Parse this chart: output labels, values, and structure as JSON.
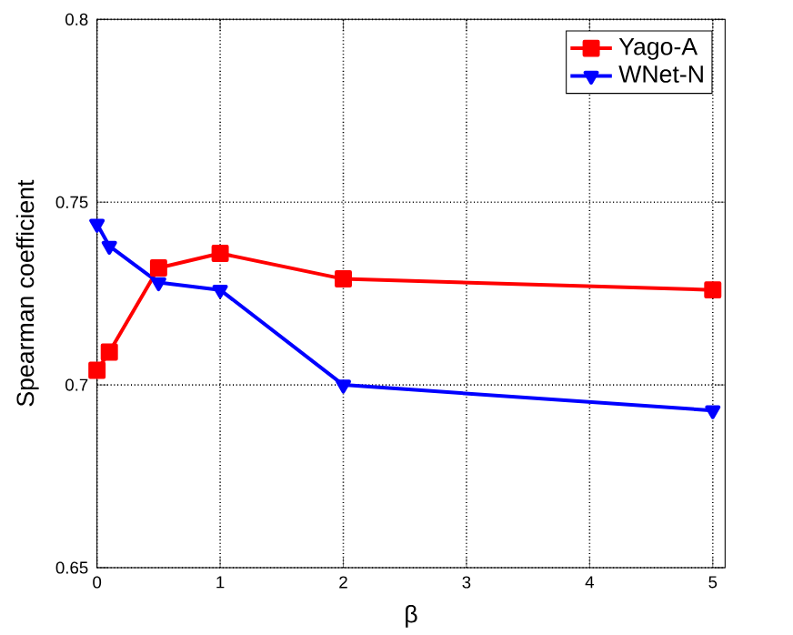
{
  "chart_data": {
    "type": "line",
    "xlabel": "β",
    "ylabel": "Spearman coefficient",
    "xlim": [
      0,
      5.1
    ],
    "ylim": [
      0.65,
      0.8
    ],
    "xticks": [
      0,
      1,
      2,
      3,
      4,
      5
    ],
    "yticks": [
      0.65,
      {
        "value": 0.7,
        "label": "0.7"
      },
      0.75,
      {
        "value": 0.8,
        "label": "0.8"
      }
    ],
    "grid": true,
    "legend": "top right",
    "series": [
      {
        "name": "Yago-A",
        "color": "#ff0000",
        "marker": "square",
        "x": [
          0,
          0.1,
          0.5,
          1,
          2,
          5
        ],
        "values": [
          0.704,
          0.709,
          0.732,
          0.736,
          0.729,
          0.726
        ]
      },
      {
        "name": "WNet-N",
        "color": "#0000ff",
        "marker": "triangle",
        "x": [
          0,
          0.1,
          0.5,
          1,
          2,
          5
        ],
        "values": [
          0.744,
          0.738,
          0.728,
          0.726,
          0.7,
          0.693
        ]
      }
    ]
  }
}
